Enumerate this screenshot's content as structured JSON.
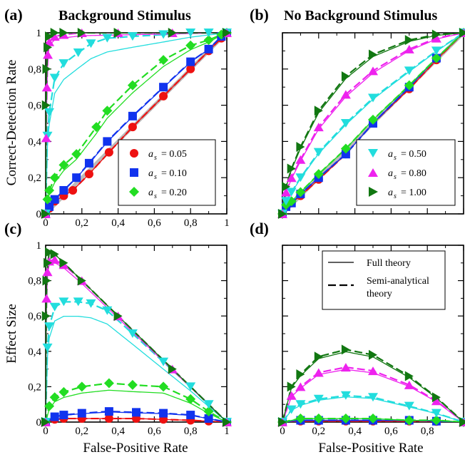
{
  "figure": {
    "legend_full": "Full theory",
    "legend_semi_line1": "Semi-analytical",
    "legend_semi_line2": "theory",
    "series_legend": [
      {
        "a": "a",
        "s": "s",
        "eq": "= 0.05"
      },
      {
        "a": "a",
        "s": "s",
        "eq": "= 0.10"
      },
      {
        "a": "a",
        "s": "s",
        "eq": "= 0.20"
      },
      {
        "a": "a",
        "s": "s",
        "eq": "= 0.50"
      },
      {
        "a": "a",
        "s": "s",
        "eq": "= 0.80"
      },
      {
        "a": "a",
        "s": "s",
        "eq": "= 1.00"
      }
    ],
    "colors": {
      "s005": "#ee1111",
      "s010": "#1133ee",
      "s020": "#22dd22",
      "s050": "#22dddd",
      "s080": "#ee22ee",
      "s100": "#117711"
    }
  },
  "chart_data": [
    {
      "panel": "(a)",
      "type": "line",
      "title": "Background Stimulus",
      "ylabel": "Correct-Detection Rate",
      "xlabel": "",
      "xlim": [
        0,
        1
      ],
      "ylim": [
        0,
        1
      ],
      "xticks": [
        "0",
        "0,2",
        "0,4",
        "0,6",
        "0,8",
        "1"
      ],
      "yticks": [
        "0",
        "0,2",
        "0,4",
        "0,6",
        "0,8",
        "1"
      ],
      "series": [
        {
          "name": "a_s = 0.05",
          "x": [
            0,
            0.02,
            0.05,
            0.1,
            0.15,
            0.24,
            0.35,
            0.48,
            0.65,
            0.8,
            0.9,
            0.97,
            1
          ],
          "y": [
            0,
            0.03,
            0.07,
            0.1,
            0.13,
            0.22,
            0.34,
            0.48,
            0.65,
            0.8,
            0.9,
            0.97,
            1
          ]
        },
        {
          "name": "a_s = 0.10",
          "x": [
            0,
            0.02,
            0.05,
            0.1,
            0.17,
            0.24,
            0.34,
            0.48,
            0.65,
            0.8,
            0.9,
            0.97,
            1
          ],
          "y": [
            0,
            0.04,
            0.08,
            0.13,
            0.2,
            0.28,
            0.4,
            0.54,
            0.7,
            0.84,
            0.91,
            0.98,
            1
          ]
        },
        {
          "name": "a_s = 0.20",
          "x": [
            0,
            0.01,
            0.02,
            0.05,
            0.1,
            0.17,
            0.28,
            0.34,
            0.48,
            0.65,
            0.8,
            0.9,
            0.97,
            1
          ],
          "y": [
            0,
            0.08,
            0.13,
            0.2,
            0.27,
            0.33,
            0.48,
            0.57,
            0.71,
            0.85,
            0.93,
            0.96,
            0.99,
            1
          ]
        },
        {
          "name": "a_s = 0.50",
          "x": [
            0,
            0.01,
            0.02,
            0.05,
            0.1,
            0.18,
            0.25,
            0.34,
            0.48,
            0.65,
            0.8,
            0.9,
            1
          ],
          "y": [
            0,
            0.43,
            0.56,
            0.75,
            0.83,
            0.89,
            0.94,
            0.97,
            0.98,
            0.99,
            1,
            1,
            1
          ]
        },
        {
          "name": "a_s = 0.80",
          "x": [
            0,
            0.003,
            0.007,
            0.012,
            0.02,
            0.05,
            0.1,
            0.2,
            0.4,
            0.7,
            1
          ],
          "y": [
            0,
            0.42,
            0.7,
            0.88,
            0.95,
            0.98,
            0.99,
            1,
            1,
            1,
            1
          ]
        },
        {
          "name": "a_s = 1.00",
          "x": [
            0,
            0.003,
            0.006,
            0.012,
            0.02,
            0.05,
            0.1,
            0.2,
            0.4,
            0.7,
            1
          ],
          "y": [
            0,
            0.6,
            0.8,
            0.92,
            0.98,
            1,
            1,
            1,
            1,
            1,
            1
          ]
        }
      ]
    },
    {
      "panel": "(b)",
      "type": "line",
      "title": "No Background Stimulus",
      "ylabel": "",
      "xlabel": "",
      "xlim": [
        0,
        1
      ],
      "ylim": [
        0,
        1
      ],
      "series": [
        {
          "name": "a_s = 0.05",
          "x": [
            0,
            0.02,
            0.05,
            0.1,
            0.2,
            0.35,
            0.5,
            0.7,
            0.85,
            1
          ],
          "y": [
            0,
            0.04,
            0.06,
            0.1,
            0.19,
            0.33,
            0.5,
            0.69,
            0.85,
            1
          ]
        },
        {
          "name": "a_s = 0.10",
          "x": [
            0,
            0.02,
            0.05,
            0.1,
            0.2,
            0.35,
            0.5,
            0.7,
            0.85,
            1
          ],
          "y": [
            0,
            0.04,
            0.06,
            0.11,
            0.2,
            0.33,
            0.5,
            0.7,
            0.86,
            1
          ]
        },
        {
          "name": "a_s = 0.20",
          "x": [
            0,
            0.02,
            0.05,
            0.1,
            0.2,
            0.35,
            0.5,
            0.7,
            0.85,
            1
          ],
          "y": [
            0,
            0.05,
            0.07,
            0.12,
            0.22,
            0.36,
            0.52,
            0.71,
            0.86,
            1
          ]
        },
        {
          "name": "a_s = 0.50",
          "x": [
            0,
            0.02,
            0.05,
            0.1,
            0.2,
            0.35,
            0.5,
            0.7,
            0.85,
            1
          ],
          "y": [
            0,
            0.07,
            0.12,
            0.2,
            0.34,
            0.5,
            0.64,
            0.79,
            0.9,
            1
          ]
        },
        {
          "name": "a_s = 0.80",
          "x": [
            0,
            0.02,
            0.05,
            0.1,
            0.2,
            0.35,
            0.5,
            0.7,
            0.85,
            1
          ],
          "y": [
            0,
            0.12,
            0.2,
            0.3,
            0.48,
            0.66,
            0.79,
            0.91,
            0.97,
            1
          ]
        },
        {
          "name": "a_s = 1.00",
          "x": [
            0,
            0.02,
            0.05,
            0.1,
            0.2,
            0.35,
            0.5,
            0.7,
            0.85,
            1
          ],
          "y": [
            0,
            0.15,
            0.25,
            0.37,
            0.57,
            0.76,
            0.88,
            0.96,
            0.99,
            1
          ]
        }
      ]
    },
    {
      "panel": "(c)",
      "type": "line",
      "title": "",
      "ylabel": "Effect Size",
      "xlabel": "False-Positive Rate",
      "xlim": [
        0,
        1
      ],
      "ylim": [
        0,
        1
      ],
      "xticks": [
        "0",
        "0,2",
        "0,4",
        "0,6",
        "0,8",
        "1"
      ],
      "yticks": [
        "0",
        "0,2",
        "0,4",
        "0,6",
        "0,8",
        "1"
      ],
      "series": [
        {
          "name": "a_s = 0.05",
          "x": [
            0,
            0.05,
            0.1,
            0.2,
            0.35,
            0.5,
            0.65,
            0.8,
            0.9,
            1
          ],
          "y": [
            0,
            0.015,
            0.02,
            0.02,
            0.02,
            0.02,
            0.015,
            0.01,
            0.005,
            0
          ]
        },
        {
          "name": "a_s = 0.10",
          "x": [
            0,
            0.05,
            0.1,
            0.2,
            0.35,
            0.5,
            0.65,
            0.8,
            0.9,
            1
          ],
          "y": [
            0,
            0.03,
            0.04,
            0.05,
            0.06,
            0.055,
            0.05,
            0.04,
            0.02,
            0
          ]
        },
        {
          "name": "a_s = 0.20",
          "x": [
            0,
            0.02,
            0.05,
            0.1,
            0.2,
            0.35,
            0.48,
            0.65,
            0.8,
            0.9,
            1
          ],
          "y": [
            0,
            0.09,
            0.14,
            0.17,
            0.2,
            0.22,
            0.21,
            0.2,
            0.13,
            0.06,
            0
          ]
        },
        {
          "name": "a_s = 0.50",
          "x": [
            0,
            0.01,
            0.02,
            0.05,
            0.1,
            0.18,
            0.25,
            0.34,
            0.48,
            0.65,
            0.8,
            0.9,
            1
          ],
          "y": [
            0,
            0.42,
            0.54,
            0.65,
            0.68,
            0.68,
            0.67,
            0.63,
            0.5,
            0.34,
            0.2,
            0.1,
            0
          ]
        },
        {
          "name": "a_s = 0.80",
          "x": [
            0,
            0.005,
            0.01,
            0.02,
            0.05,
            0.1,
            0.2,
            0.4,
            0.7,
            1
          ],
          "y": [
            0,
            0.7,
            0.85,
            0.91,
            0.92,
            0.89,
            0.8,
            0.6,
            0.3,
            0
          ]
        },
        {
          "name": "a_s = 1.00",
          "x": [
            0,
            0.003,
            0.006,
            0.012,
            0.02,
            0.05,
            0.1,
            0.2,
            0.4,
            0.7,
            1
          ],
          "y": [
            0,
            0.6,
            0.8,
            0.9,
            0.96,
            0.95,
            0.9,
            0.8,
            0.6,
            0.3,
            0
          ]
        }
      ]
    },
    {
      "panel": "(d)",
      "type": "line",
      "title": "",
      "ylabel": "",
      "xlabel": "False-Positive Rate",
      "xlim": [
        0,
        1
      ],
      "ylim": [
        0,
        1
      ],
      "xticks": [
        "0",
        "0,2",
        "0,4",
        "0,6",
        "0,8"
      ],
      "series": [
        {
          "name": "a_s = 0.05",
          "x": [
            0,
            0.1,
            0.2,
            0.35,
            0.5,
            0.7,
            0.85,
            1
          ],
          "y": [
            0,
            0.005,
            0.005,
            0.005,
            0.005,
            0.005,
            0.003,
            0
          ]
        },
        {
          "name": "a_s = 0.10",
          "x": [
            0,
            0.1,
            0.2,
            0.35,
            0.5,
            0.7,
            0.85,
            1
          ],
          "y": [
            0,
            0.01,
            0.01,
            0.01,
            0.01,
            0.01,
            0.005,
            0
          ]
        },
        {
          "name": "a_s = 0.20",
          "x": [
            0,
            0.1,
            0.2,
            0.35,
            0.5,
            0.7,
            0.85,
            1
          ],
          "y": [
            0,
            0.02,
            0.02,
            0.02,
            0.02,
            0.01,
            0.01,
            0
          ]
        },
        {
          "name": "a_s = 0.50",
          "x": [
            0,
            0.05,
            0.1,
            0.2,
            0.35,
            0.5,
            0.7,
            0.85,
            1
          ],
          "y": [
            0,
            0.07,
            0.1,
            0.13,
            0.15,
            0.14,
            0.09,
            0.05,
            0
          ]
        },
        {
          "name": "a_s = 0.80",
          "x": [
            0,
            0.05,
            0.1,
            0.2,
            0.35,
            0.5,
            0.7,
            0.85,
            1
          ],
          "y": [
            0,
            0.15,
            0.2,
            0.28,
            0.31,
            0.29,
            0.21,
            0.12,
            0
          ]
        },
        {
          "name": "a_s = 1.00",
          "x": [
            0,
            0.05,
            0.1,
            0.2,
            0.35,
            0.5,
            0.7,
            0.85,
            1
          ],
          "y": [
            0,
            0.2,
            0.27,
            0.37,
            0.41,
            0.38,
            0.26,
            0.14,
            0
          ]
        }
      ]
    }
  ]
}
